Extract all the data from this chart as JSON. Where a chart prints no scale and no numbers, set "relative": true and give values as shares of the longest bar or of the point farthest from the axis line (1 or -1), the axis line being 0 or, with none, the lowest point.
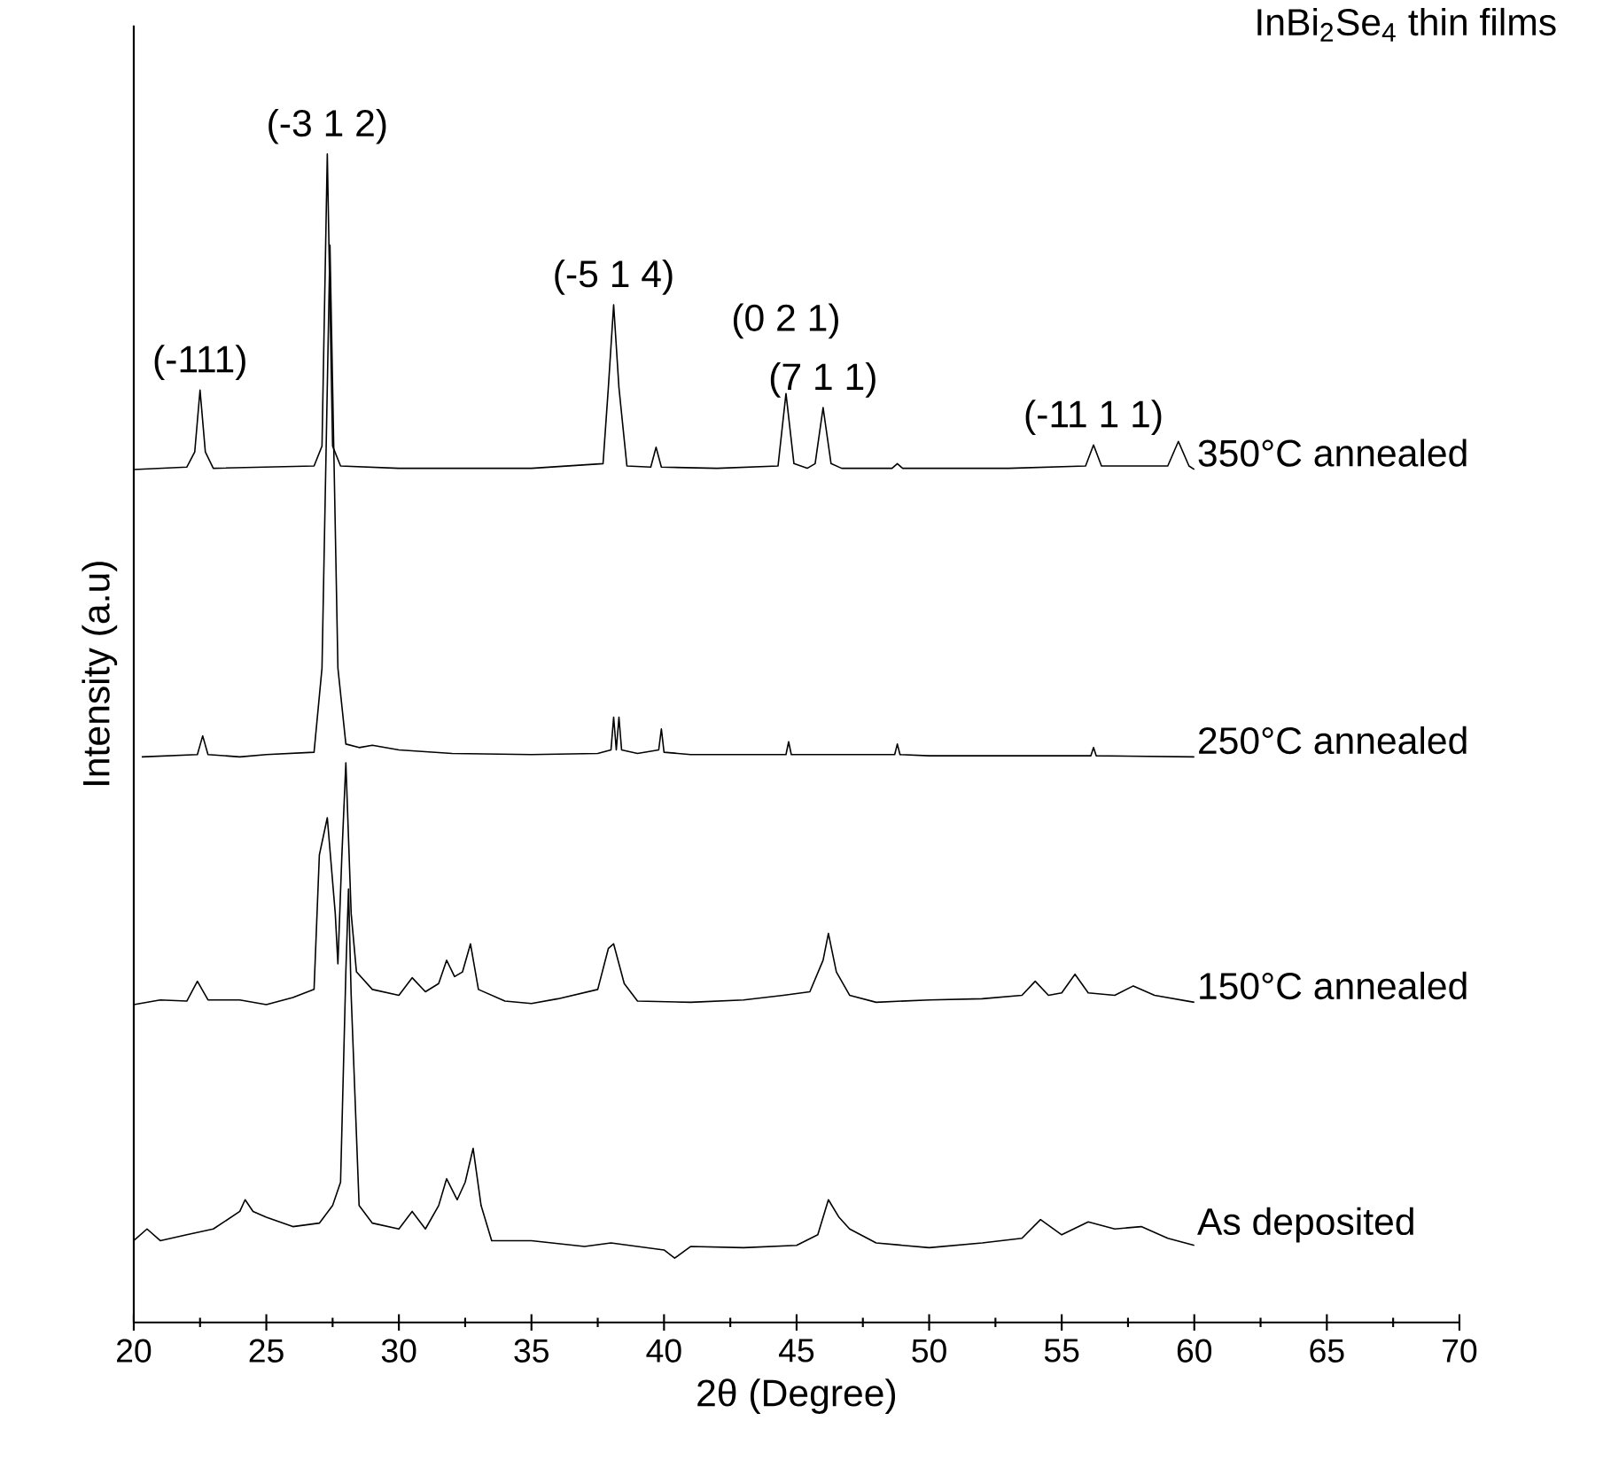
{
  "chart_data": {
    "type": "line",
    "title": "InBi$_{2}$Se$_{4}$ thin films",
    "xlabel": "2θ (Degree)",
    "ylabel": "Intensity (a.u)",
    "relative": true,
    "xlim": [
      20,
      70
    ],
    "xticks": [
      20,
      25,
      30,
      35,
      40,
      45,
      50,
      55,
      60,
      65,
      70
    ],
    "legend": false,
    "grid": false,
    "marker": "none",
    "line_style": "solid",
    "series": [
      {
        "name": "350°C annealed",
        "color": "#000000",
        "x": [
          20.0,
          22.0,
          22.3,
          22.5,
          22.7,
          23.0,
          26.8,
          27.1,
          27.3,
          27.5,
          27.8,
          30,
          35,
          37.7,
          37.9,
          38.1,
          38.3,
          38.6,
          39.5,
          39.7,
          39.9,
          42,
          44.3,
          44.6,
          44.9,
          45.4,
          45.7,
          46.0,
          46.3,
          46.7,
          48.6,
          48.8,
          49.0,
          53,
          55.9,
          56.2,
          56.5,
          59.0,
          59.4,
          59.8,
          60.0
        ],
        "values": [
          0.73,
          0.732,
          0.745,
          0.798,
          0.745,
          0.731,
          0.733,
          0.75,
          1.0,
          0.75,
          0.733,
          0.731,
          0.731,
          0.735,
          0.8,
          0.871,
          0.8,
          0.733,
          0.732,
          0.749,
          0.732,
          0.731,
          0.733,
          0.795,
          0.735,
          0.731,
          0.735,
          0.783,
          0.735,
          0.731,
          0.731,
          0.735,
          0.731,
          0.731,
          0.733,
          0.751,
          0.733,
          0.733,
          0.754,
          0.733,
          0.73
        ]
      },
      {
        "name": "250°C annealed",
        "color": "#000000",
        "x": [
          20.3,
          22.4,
          22.6,
          22.8,
          24,
          25,
          26.8,
          27.1,
          27.4,
          27.7,
          28.0,
          28.5,
          29.0,
          30,
          32,
          35,
          37.5,
          38.0,
          38.1,
          38.2,
          38.3,
          38.4,
          39.0,
          39.8,
          39.9,
          40.0,
          41,
          44.6,
          44.7,
          44.8,
          46,
          48.7,
          48.8,
          48.9,
          50,
          56.1,
          56.2,
          56.3,
          60
        ],
        "values": [
          0.484,
          0.486,
          0.502,
          0.486,
          0.484,
          0.486,
          0.488,
          0.56,
          0.922,
          0.56,
          0.495,
          0.492,
          0.494,
          0.49,
          0.487,
          0.486,
          0.487,
          0.49,
          0.518,
          0.49,
          0.518,
          0.49,
          0.487,
          0.49,
          0.508,
          0.488,
          0.486,
          0.486,
          0.497,
          0.486,
          0.486,
          0.486,
          0.495,
          0.486,
          0.485,
          0.485,
          0.492,
          0.485,
          0.484
        ]
      },
      {
        "name": "150°C annealed",
        "color": "#000000",
        "x": [
          20,
          21,
          22.0,
          22.4,
          22.8,
          24,
          25,
          26,
          26.8,
          27.0,
          27.3,
          27.6,
          27.7,
          27.85,
          28.0,
          28.2,
          28.4,
          29,
          30,
          30.5,
          31,
          31.5,
          31.8,
          32.1,
          32.4,
          32.7,
          33.0,
          34,
          35,
          36,
          37.5,
          37.9,
          38.1,
          38.5,
          39,
          41,
          43,
          44.5,
          45.5,
          46.0,
          46.2,
          46.5,
          47,
          48,
          50,
          52,
          53.5,
          54.0,
          54.5,
          55.0,
          55.5,
          56,
          57,
          57.7,
          58.5,
          60
        ],
        "values": [
          0.272,
          0.276,
          0.275,
          0.292,
          0.276,
          0.276,
          0.272,
          0.278,
          0.285,
          0.4,
          0.432,
          0.35,
          0.307,
          0.4,
          0.479,
          0.35,
          0.3,
          0.285,
          0.28,
          0.295,
          0.283,
          0.29,
          0.31,
          0.296,
          0.3,
          0.324,
          0.285,
          0.275,
          0.273,
          0.277,
          0.285,
          0.32,
          0.324,
          0.29,
          0.275,
          0.274,
          0.276,
          0.28,
          0.283,
          0.31,
          0.333,
          0.3,
          0.28,
          0.274,
          0.276,
          0.277,
          0.28,
          0.292,
          0.28,
          0.282,
          0.298,
          0.282,
          0.28,
          0.288,
          0.28,
          0.274
        ]
      },
      {
        "name": "As deposited",
        "color": "#000000",
        "x": [
          20,
          20.5,
          21,
          22,
          23,
          24,
          24.2,
          24.5,
          25,
          26,
          27,
          27.5,
          27.8,
          28.0,
          28.1,
          28.2,
          28.5,
          29,
          30,
          30.5,
          31,
          31.5,
          31.8,
          32.2,
          32.5,
          32.8,
          33.1,
          33.5,
          35,
          37,
          38,
          40,
          40.4,
          41,
          43,
          45,
          45.8,
          46.2,
          46.6,
          47,
          48,
          50,
          52,
          53.5,
          54.2,
          55,
          56,
          57,
          58,
          59,
          60
        ],
        "values": [
          0.07,
          0.08,
          0.07,
          0.075,
          0.08,
          0.095,
          0.105,
          0.095,
          0.09,
          0.082,
          0.085,
          0.1,
          0.12,
          0.3,
          0.371,
          0.28,
          0.1,
          0.085,
          0.08,
          0.095,
          0.08,
          0.1,
          0.123,
          0.105,
          0.12,
          0.149,
          0.1,
          0.07,
          0.07,
          0.065,
          0.068,
          0.062,
          0.055,
          0.065,
          0.064,
          0.066,
          0.075,
          0.105,
          0.09,
          0.08,
          0.068,
          0.064,
          0.068,
          0.072,
          0.088,
          0.075,
          0.086,
          0.08,
          0.082,
          0.072,
          0.066
        ]
      }
    ],
    "annotations": [
      {
        "text": "(-111)",
        "x": 22.5,
        "y": 0.798
      },
      {
        "text": "(-3 1 2)",
        "x": 27.3,
        "y": 1.0
      },
      {
        "text": "(-5 1 4)",
        "x": 38.1,
        "y": 0.871
      },
      {
        "text": "(0 2 1)",
        "x": 44.6,
        "y": 0.795
      },
      {
        "text": "(7 1 1)",
        "x": 46.0,
        "y": 0.783
      },
      {
        "text": "(-11 1 1)",
        "x": 56.2,
        "y": 0.751
      }
    ]
  }
}
